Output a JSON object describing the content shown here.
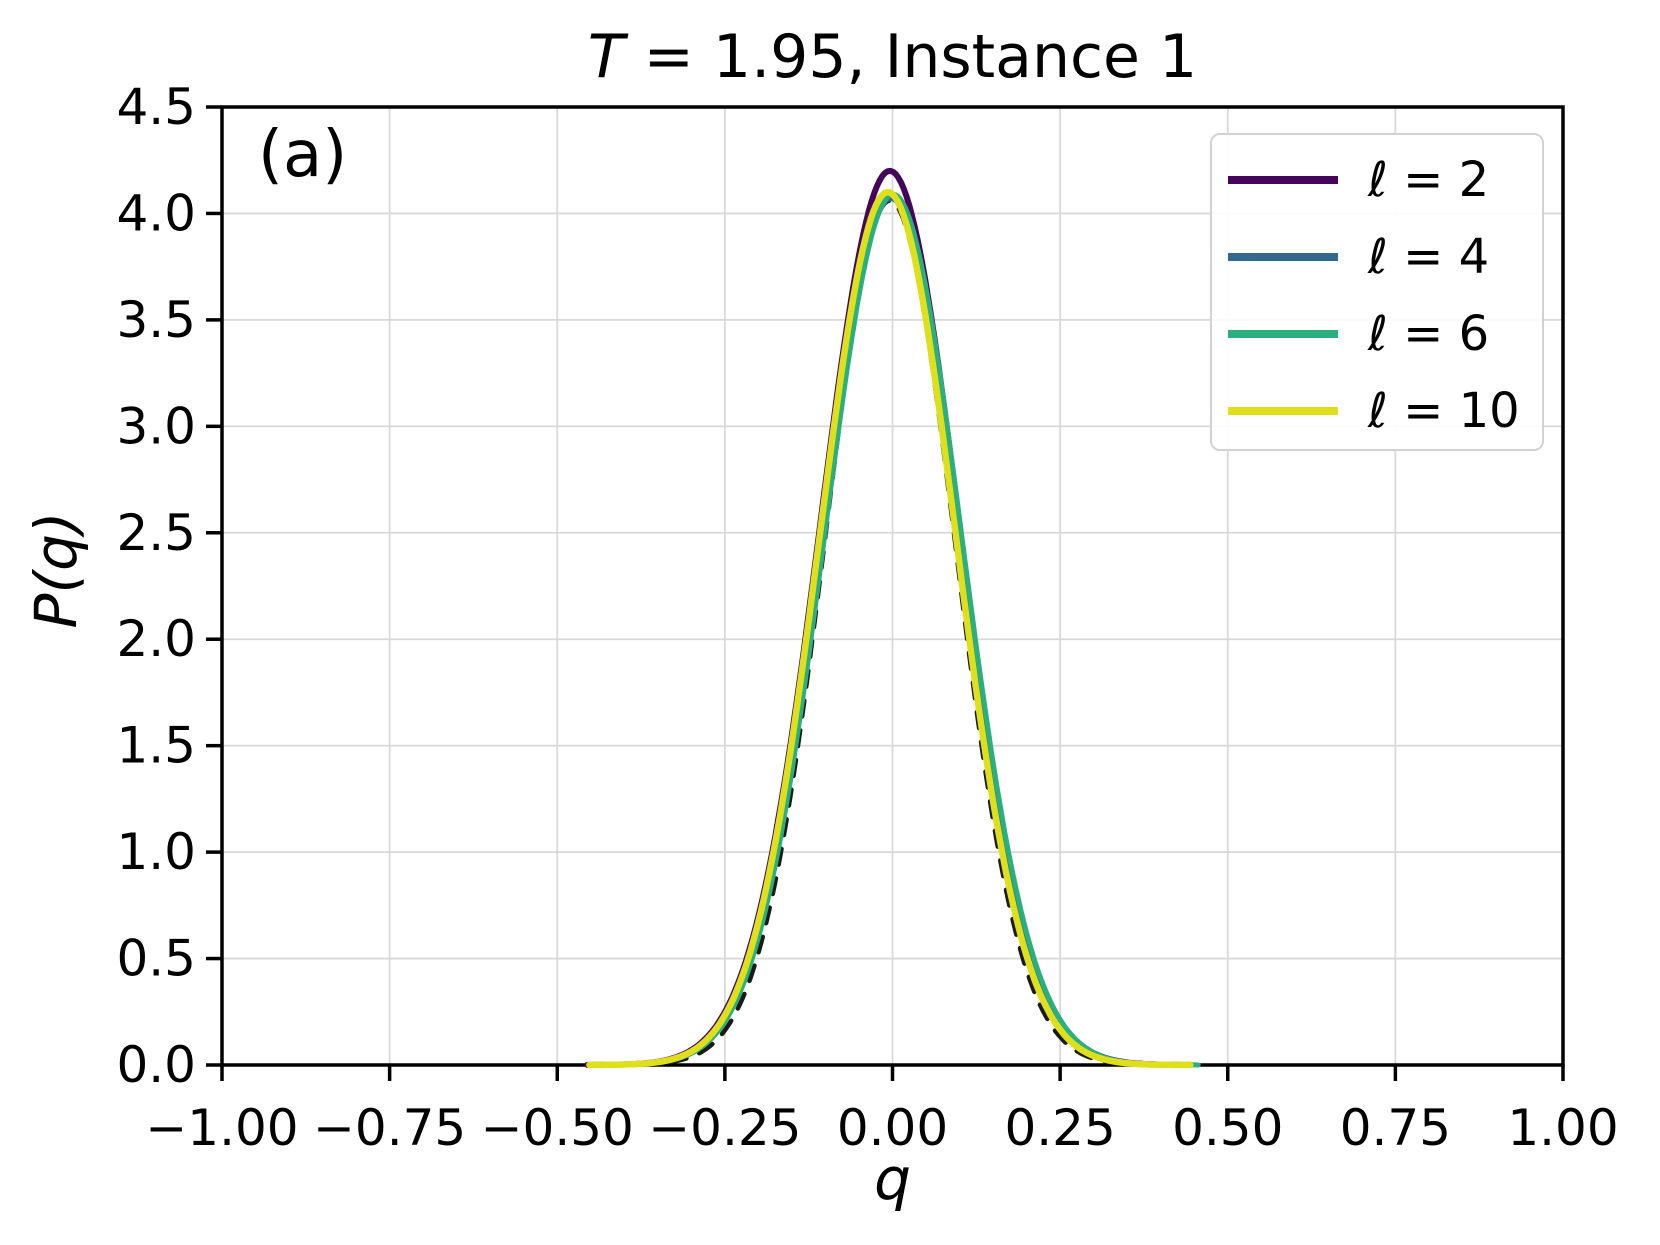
{
  "figure": {
    "title_math": "T",
    "title_rest": " = 1.95, Instance 1",
    "panel_label": "(a)",
    "xlabel": "q",
    "ylabel": "P(q)"
  },
  "chart_data": {
    "type": "line",
    "title": "T = 1.95, Instance 1",
    "xlabel": "q",
    "ylabel": "P(q)",
    "xlim": [
      -1.0,
      1.0
    ],
    "ylim": [
      0.0,
      4.5
    ],
    "grid": true,
    "grid_color": "#d9d9d9",
    "spine_color": "#000000",
    "legend_position": "upper right",
    "x_ticks": {
      "values": [
        -1.0,
        -0.75,
        -0.5,
        -0.25,
        0.0,
        0.25,
        0.5,
        0.75,
        1.0
      ],
      "labels": [
        "−1.00",
        "−0.75",
        "−0.50",
        "−0.25",
        "0.00",
        "0.25",
        "0.50",
        "0.75",
        "1.00"
      ]
    },
    "y_ticks": {
      "values": [
        0.0,
        0.5,
        1.0,
        1.5,
        2.0,
        2.5,
        3.0,
        3.5,
        4.0,
        4.5
      ],
      "labels": [
        "0.0",
        "0.5",
        "1.0",
        "1.5",
        "2.0",
        "2.5",
        "3.0",
        "3.5",
        "4.0",
        "4.5"
      ]
    },
    "x": [
      -0.45,
      -0.4,
      -0.35,
      -0.3,
      -0.25,
      -0.2,
      -0.15,
      -0.1,
      -0.05,
      0.0,
      0.05,
      0.1,
      0.15,
      0.2,
      0.25,
      0.3,
      0.35,
      0.4,
      0.45
    ],
    "series": [
      {
        "name": "gaussian-fit-dashed",
        "legend_label": "",
        "in_legend": false,
        "color": "#1a1a1a",
        "style": "dashed",
        "line_width": 4.5,
        "peak": 4.06,
        "mean": -0.004,
        "sigma": 0.097,
        "support": [
          -0.42,
          0.42
        ],
        "y": [
          0.0,
          0.0,
          0.01,
          0.04,
          0.17,
          0.53,
          1.31,
          2.47,
          3.63,
          4.06,
          3.63,
          2.47,
          1.31,
          0.53,
          0.17,
          0.04,
          0.01,
          0.0,
          0.0
        ]
      },
      {
        "name": "curve-l2",
        "legend_label": "ℓ = 2",
        "in_legend": true,
        "color": "#45055a",
        "style": "solid",
        "line_width": 6,
        "peak": 4.2,
        "mean": -0.004,
        "sigma": 0.1035,
        "support": [
          -0.455,
          0.445
        ],
        "y": [
          0.0,
          0.0,
          0.01,
          0.06,
          0.21,
          0.61,
          1.42,
          2.6,
          3.72,
          4.2,
          3.72,
          2.6,
          1.42,
          0.61,
          0.21,
          0.06,
          0.01,
          0.0,
          0.0
        ]
      },
      {
        "name": "curve-l4",
        "legend_label": "ℓ = 4",
        "in_legend": true,
        "color": "#31688e",
        "style": "solid",
        "line_width": 5,
        "peak": 4.07,
        "mean": -0.002,
        "sigma": 0.1015,
        "support": [
          -0.43,
          0.435
        ],
        "y": [
          0.0,
          0.0,
          0.01,
          0.05,
          0.2,
          0.59,
          1.38,
          2.52,
          3.61,
          4.07,
          3.61,
          2.52,
          1.38,
          0.59,
          0.2,
          0.05,
          0.01,
          0.0,
          0.0
        ]
      },
      {
        "name": "curve-l6",
        "legend_label": "ℓ = 6",
        "in_legend": true,
        "color": "#2ab07f",
        "style": "solid",
        "line_width": 5,
        "peak": 4.09,
        "mean": 0.001,
        "sigma": 0.1025,
        "support": [
          -0.44,
          0.458
        ],
        "y": [
          0.0,
          0.0,
          0.01,
          0.05,
          0.2,
          0.6,
          1.39,
          2.53,
          3.63,
          4.09,
          3.63,
          2.53,
          1.39,
          0.6,
          0.2,
          0.05,
          0.01,
          0.0,
          0.0
        ]
      },
      {
        "name": "curve-l10",
        "legend_label": "ℓ = 10",
        "in_legend": true,
        "color": "#dfe01b",
        "style": "solid",
        "line_width": 6.5,
        "peak": 4.1,
        "mean": -0.007,
        "sigma": 0.1015,
        "support": [
          -0.452,
          0.447
        ],
        "y": [
          0.0,
          0.0,
          0.01,
          0.05,
          0.2,
          0.6,
          1.39,
          2.54,
          3.64,
          4.1,
          3.64,
          2.54,
          1.39,
          0.6,
          0.2,
          0.05,
          0.01,
          0.0,
          0.0
        ]
      }
    ]
  }
}
